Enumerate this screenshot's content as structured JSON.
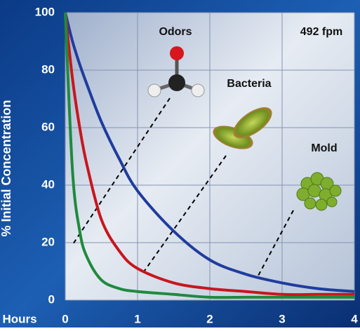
{
  "chart_data": {
    "type": "line",
    "x": [
      0,
      0.1,
      0.2,
      0.3,
      0.5,
      0.75,
      1,
      1.5,
      2,
      2.5,
      3,
      3.5,
      4
    ],
    "series": [
      {
        "color": "#1f3c9e",
        "values": [
          100,
          90,
          82,
          75,
          62,
          49,
          38,
          24,
          14,
          9,
          6,
          4,
          3
        ]
      },
      {
        "color": "#c8161d",
        "values": [
          100,
          77,
          60,
          47,
          28,
          17,
          11,
          6,
          4,
          3,
          2,
          2,
          2
        ]
      },
      {
        "color": "#1e8a3c",
        "values": [
          100,
          45,
          24,
          15,
          7,
          4,
          3,
          2,
          1,
          1,
          1,
          1,
          1
        ]
      }
    ],
    "xlim": [
      0,
      4
    ],
    "xticks": [
      0,
      1,
      2,
      3,
      4
    ],
    "ylim": [
      0,
      100
    ],
    "yticks": [
      0,
      20,
      40,
      60,
      80,
      100
    ],
    "xlabel": "Hours",
    "ylabel": "% Initial Concentration",
    "annotations": [
      "Odors",
      "Bacteria",
      "Mold",
      "492 fpm"
    ],
    "grid": true
  }
}
